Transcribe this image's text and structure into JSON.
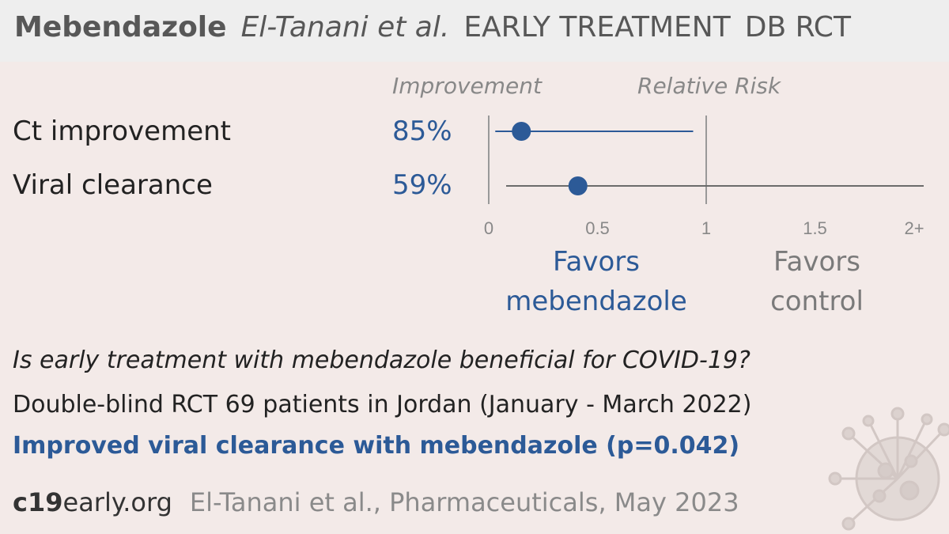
{
  "title": {
    "drug": "Mebendazole",
    "author": "El-Tanani et al.",
    "stage": "EARLY TREATMENT",
    "design": "DB RCT"
  },
  "headers": {
    "improvement": "Improvement",
    "relative_risk": "Relative Risk"
  },
  "chart_data": {
    "type": "forest",
    "xlim": [
      0,
      2
    ],
    "reference_line": 1,
    "ticks": [
      {
        "value": 0,
        "label": "0"
      },
      {
        "value": 0.5,
        "label": "0.5"
      },
      {
        "value": 1,
        "label": "1"
      },
      {
        "value": 1.5,
        "label": "1.5"
      },
      {
        "value": 2,
        "label": "2+"
      }
    ],
    "rows": [
      {
        "label": "Ct improvement",
        "improvement": "85%",
        "estimate": 0.15,
        "ci": [
          0.03,
          0.94
        ]
      },
      {
        "label": "Viral clearance",
        "improvement": "59%",
        "estimate": 0.41,
        "ci": [
          0.08,
          2.0
        ]
      }
    ],
    "favors_left": "Favors mebendazole",
    "favors_right": "Favors control",
    "colors": {
      "treatment": "#2c5a97",
      "control": "#7a7a7a",
      "axis": "#999999"
    }
  },
  "summary": {
    "question": "Is early treatment with mebendazole beneficial for COVID-19?",
    "design": "Double-blind RCT 69 patients in Jordan (January - March 2022)",
    "result": "Improved viral clearance with mebendazole (p=0.042)"
  },
  "footer": {
    "site_bold": "c19",
    "site_rest": "early.org",
    "citation": "El-Tanani et al., Pharmaceuticals, May 2023"
  }
}
